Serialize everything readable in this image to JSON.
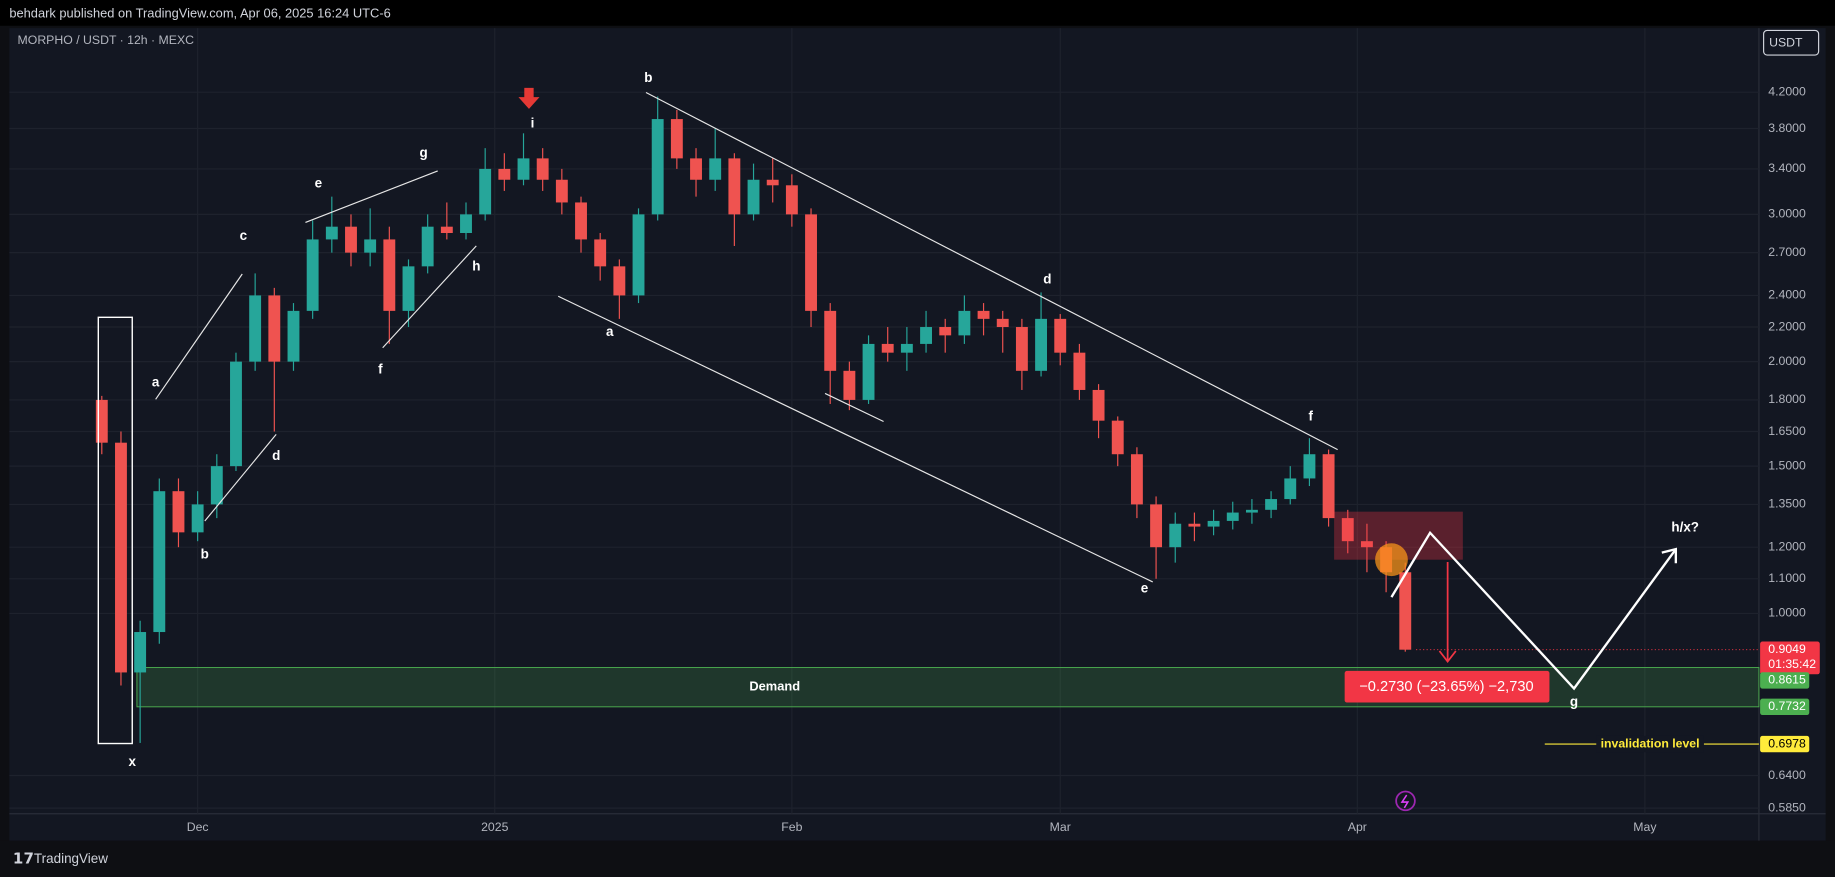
{
  "header": {
    "publisher": "behdark published on TradingView.com, Apr 06, 2025 16:24 UTC-6"
  },
  "toolbar": {
    "currency": "USDT"
  },
  "footer": {
    "brand": "TradingView"
  },
  "chart_data": {
    "type": "candlestick",
    "title": "MORPHO / USDT · 12h · MEXC",
    "log_scale": true,
    "grid": true,
    "up_color": "#26a69a",
    "down_color": "#ef5350",
    "ylim": [
      0.576,
      5.01
    ],
    "yticks": [
      {
        "value": 4.2,
        "label": "4.2000"
      },
      {
        "value": 3.8,
        "label": "3.8000"
      },
      {
        "value": 3.4,
        "label": "3.4000"
      },
      {
        "value": 3.0,
        "label": "3.0000"
      },
      {
        "value": 2.7,
        "label": "2.7000"
      },
      {
        "value": 2.4,
        "label": "2.4000"
      },
      {
        "value": 2.2,
        "label": "2.2000"
      },
      {
        "value": 2.0,
        "label": "2.0000"
      },
      {
        "value": 1.8,
        "label": "1.8000"
      },
      {
        "value": 1.65,
        "label": "1.6500"
      },
      {
        "value": 1.5,
        "label": "1.5000"
      },
      {
        "value": 1.35,
        "label": "1.3500"
      },
      {
        "value": 1.2,
        "label": "1.2000"
      },
      {
        "value": 1.1,
        "label": "1.1000"
      },
      {
        "value": 1.0,
        "label": "1.0000"
      },
      {
        "value": 0.64,
        "label": "0.6400"
      },
      {
        "value": 0.585,
        "label": "0.5850"
      }
    ],
    "xlim": [
      -19.4,
      162.9
    ],
    "xticks": [
      {
        "value": 0,
        "label": "Dec"
      },
      {
        "value": 31,
        "label": "2025"
      },
      {
        "value": 62,
        "label": "Feb"
      },
      {
        "value": 90,
        "label": "Mar"
      },
      {
        "value": 121,
        "label": "Apr"
      },
      {
        "value": 151,
        "label": "May"
      }
    ],
    "candles": {
      "x": [
        -10,
        -8,
        -6,
        -4,
        -2,
        0,
        2,
        4,
        6,
        8,
        10,
        12,
        14,
        16,
        18,
        20,
        22,
        24,
        26,
        28,
        30,
        32,
        34,
        36,
        38,
        40,
        42,
        44,
        46,
        48,
        50,
        52,
        54,
        56,
        58,
        60,
        62,
        64,
        66,
        68,
        70,
        72,
        74,
        76,
        78,
        80,
        82,
        84,
        86,
        88,
        90,
        92,
        94,
        96,
        98,
        100,
        102,
        104,
        106,
        108,
        110,
        112,
        114,
        116,
        118,
        120,
        122,
        124,
        126
      ],
      "open": [
        1.8,
        1.6,
        0.85,
        0.95,
        1.4,
        1.25,
        1.35,
        1.5,
        2.0,
        2.4,
        2.0,
        2.3,
        2.8,
        2.9,
        2.7,
        2.8,
        2.3,
        2.6,
        2.9,
        2.85,
        3.0,
        3.4,
        3.3,
        3.5,
        3.3,
        3.1,
        2.8,
        2.6,
        2.4,
        3.0,
        3.9,
        3.5,
        3.3,
        3.5,
        3.0,
        3.3,
        3.25,
        3.0,
        2.3,
        1.95,
        1.8,
        2.1,
        2.05,
        2.1,
        2.2,
        2.15,
        2.3,
        2.25,
        2.2,
        1.95,
        2.25,
        2.05,
        1.85,
        1.7,
        1.55,
        1.35,
        1.2,
        1.28,
        1.27,
        1.29,
        1.32,
        1.33,
        1.37,
        1.45,
        1.55,
        1.3,
        1.22,
        1.2,
        1.12
      ],
      "high": [
        1.82,
        1.65,
        0.98,
        1.45,
        1.45,
        1.4,
        1.55,
        2.05,
        2.55,
        2.45,
        2.35,
        2.95,
        3.15,
        3.0,
        3.05,
        2.9,
        2.65,
        3.0,
        3.1,
        3.1,
        3.6,
        3.55,
        3.75,
        3.6,
        3.4,
        3.15,
        2.85,
        2.65,
        3.05,
        4.15,
        4.0,
        3.6,
        3.8,
        3.55,
        3.45,
        3.5,
        3.35,
        3.05,
        2.35,
        2.0,
        2.15,
        2.2,
        2.2,
        2.3,
        2.25,
        2.4,
        2.35,
        2.3,
        2.25,
        2.42,
        2.28,
        2.1,
        1.88,
        1.72,
        1.58,
        1.38,
        1.32,
        1.32,
        1.33,
        1.36,
        1.37,
        1.4,
        1.5,
        1.62,
        1.57,
        1.33,
        1.28,
        1.22,
        1.15
      ],
      "low": [
        1.55,
        0.82,
        0.7,
        0.92,
        1.2,
        1.22,
        1.3,
        1.48,
        1.95,
        1.65,
        1.95,
        2.25,
        2.7,
        2.6,
        2.6,
        2.1,
        2.2,
        2.55,
        2.8,
        2.8,
        2.95,
        3.2,
        3.25,
        3.2,
        3.0,
        2.7,
        2.5,
        2.25,
        2.35,
        2.95,
        3.4,
        3.15,
        3.2,
        2.75,
        2.95,
        3.1,
        2.9,
        2.2,
        1.78,
        1.75,
        1.78,
        2.0,
        1.95,
        2.05,
        2.05,
        2.1,
        2.15,
        2.05,
        1.85,
        1.92,
        1.98,
        1.8,
        1.62,
        1.5,
        1.3,
        1.1,
        1.15,
        1.22,
        1.24,
        1.26,
        1.28,
        1.3,
        1.35,
        1.42,
        1.27,
        1.18,
        1.12,
        1.06,
        0.9
      ],
      "close": [
        1.6,
        0.85,
        0.95,
        1.4,
        1.25,
        1.35,
        1.5,
        2.0,
        2.4,
        2.0,
        2.3,
        2.8,
        2.9,
        2.7,
        2.8,
        2.3,
        2.6,
        2.9,
        2.85,
        3.0,
        3.4,
        3.3,
        3.5,
        3.3,
        3.1,
        2.8,
        2.6,
        2.4,
        3.0,
        3.9,
        3.5,
        3.3,
        3.5,
        3.0,
        3.3,
        3.25,
        3.0,
        2.3,
        1.95,
        1.8,
        2.1,
        2.05,
        2.1,
        2.2,
        2.15,
        2.3,
        2.25,
        2.2,
        1.95,
        2.25,
        2.05,
        1.85,
        1.7,
        1.55,
        1.35,
        1.2,
        1.28,
        1.27,
        1.29,
        1.32,
        1.33,
        1.37,
        1.45,
        1.55,
        1.3,
        1.22,
        1.2,
        1.12,
        0.9049
      ]
    },
    "last_price": {
      "value": 0.9049,
      "countdown": "01:35:42",
      "color": "#f23645"
    },
    "demand_zone": {
      "label": "Demand",
      "high": 0.8615,
      "low": 0.7732,
      "color": "#4caf50"
    },
    "invalidation": {
      "label": "invalidation level",
      "value": 0.6978,
      "color": "#ffeb3b"
    },
    "measure": {
      "label": "−0.2730 (−23.65%) −2,730",
      "color": "#f23645"
    },
    "wave_labels": [
      "x",
      "a",
      "b",
      "c",
      "d",
      "e",
      "f",
      "g",
      "h",
      "i",
      "b",
      "a",
      "d",
      "e",
      "f",
      "g",
      "h/x?"
    ]
  }
}
